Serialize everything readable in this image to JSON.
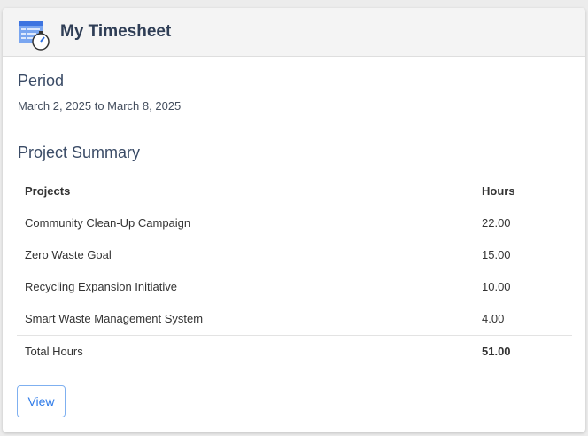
{
  "header": {
    "title": "My Timesheet",
    "icon": "timesheet-stopwatch-icon"
  },
  "period": {
    "heading": "Period",
    "range": "March 2, 2025 to March 8, 2025"
  },
  "summary": {
    "heading": "Project Summary",
    "columns": [
      "Projects",
      "Hours"
    ],
    "rows": [
      {
        "project": "Community Clean-Up Campaign",
        "hours": "22.00"
      },
      {
        "project": "Zero Waste Goal",
        "hours": "15.00"
      },
      {
        "project": "Recycling Expansion Initiative",
        "hours": "10.00"
      },
      {
        "project": "Smart Waste Management System",
        "hours": "4.00"
      }
    ],
    "total_label": "Total Hours",
    "total_value": "51.00"
  },
  "actions": {
    "view_label": "View"
  },
  "colors": {
    "accent": "#2f7be8",
    "title": "#2f3e56"
  }
}
